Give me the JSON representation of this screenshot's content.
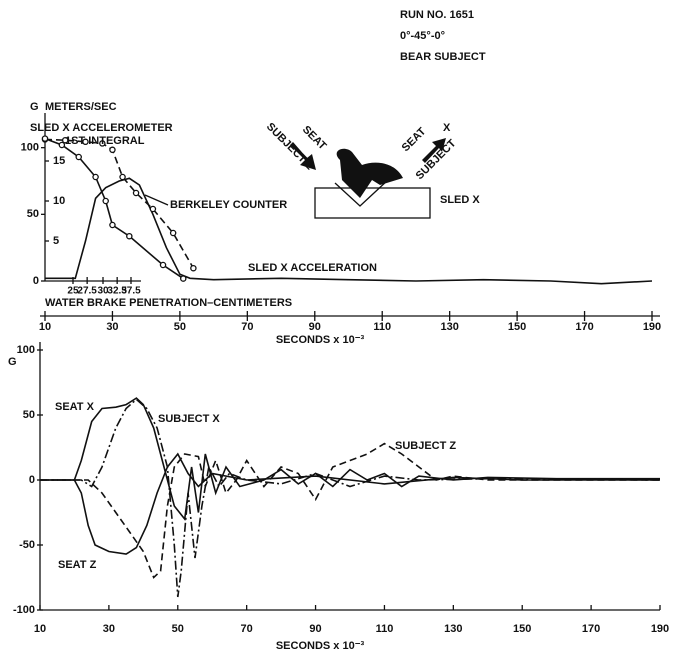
{
  "header": {
    "lines": [
      "RUN NO. 1651",
      "0°-45°-0°",
      "BEAR SUBJECT"
    ]
  },
  "diagram": {
    "labels": [
      "SEAT",
      "SUBJECT Z",
      "SEAT",
      "X",
      "SUBJECT",
      "SLED X"
    ]
  },
  "chart_data": [
    {
      "type": "line",
      "y_label": "G",
      "y2_label": "METERS/SEC",
      "x_label": "SECONDS x 10⁻³",
      "penetration_label": "WATER BRAKE PENETRATION–CENTIMETERS",
      "annotations": [
        "SLED X ACCELEROMETER"
      ],
      "xlim": [
        10,
        190
      ],
      "xticks": [
        10,
        30,
        50,
        70,
        90,
        110,
        130,
        150,
        170,
        190
      ],
      "ylim": [
        0,
        120
      ],
      "yticks": [
        0,
        50,
        100
      ],
      "y2lim": [
        0,
        20
      ],
      "y2ticks": [
        5,
        10,
        15
      ],
      "penetration_ticks": [
        {
          "value": 18.3,
          "label": "25"
        },
        {
          "value": 22.5,
          "label": "27.5"
        },
        {
          "value": 27.2,
          "label": "30"
        },
        {
          "value": 31.4,
          "label": "32.5"
        },
        {
          "value": 35.5,
          "label": "37.5"
        }
      ],
      "series": [
        {
          "name": "SLED X ACCELERATION",
          "color": "#111",
          "dash": "solid",
          "x": [
            10,
            19,
            22,
            25,
            28,
            32,
            35,
            38,
            42,
            46,
            50,
            53,
            60,
            80,
            100,
            120,
            140,
            160,
            175,
            190
          ],
          "values": [
            2,
            2,
            30,
            62,
            70,
            75,
            77,
            72,
            50,
            25,
            5,
            2,
            1,
            2,
            1,
            0,
            1,
            0,
            -2,
            0
          ]
        },
        {
          "name": "1ST INTEGRAL",
          "color": "#111",
          "dash": "dashed",
          "axis": "y2",
          "markers": true,
          "x": [
            10,
            16,
            22,
            27,
            30,
            33,
            37,
            42,
            48,
            54
          ],
          "values": [
            17.7,
            17.6,
            17.4,
            17.2,
            16.4,
            13,
            11,
            9,
            6,
            1.6
          ]
        },
        {
          "name": "BERKELEY COUNTER",
          "color": "#111",
          "dash": "solid",
          "axis": "y2",
          "markers": true,
          "x": [
            10,
            15,
            20,
            25,
            28,
            30,
            35,
            45,
            51
          ],
          "values": [
            17.8,
            17,
            15.5,
            13,
            10,
            7,
            5.6,
            2,
            0.3
          ]
        }
      ]
    },
    {
      "type": "line",
      "y_label": "G",
      "x_label": "SECONDS x 10⁻³",
      "xlim": [
        10,
        190
      ],
      "xticks": [
        10,
        30,
        50,
        70,
        90,
        110,
        130,
        150,
        170,
        190
      ],
      "ylim": [
        -100,
        100
      ],
      "yticks": [
        100,
        50,
        0,
        -50,
        -100
      ],
      "series": [
        {
          "name": "SEAT X",
          "color": "#111",
          "dash": "solid",
          "x": [
            10,
            20,
            22,
            25,
            28,
            32,
            35,
            38,
            40,
            43,
            46,
            49,
            52,
            54,
            56,
            58,
            61,
            64,
            68,
            75,
            80,
            85,
            90,
            95,
            100,
            105,
            110,
            115,
            120,
            130,
            140,
            160,
            190
          ],
          "values": [
            0,
            0,
            15,
            45,
            55,
            56,
            58,
            63,
            58,
            40,
            10,
            -20,
            -30,
            10,
            -25,
            20,
            -10,
            10,
            -5,
            0,
            8,
            -3,
            5,
            -5,
            8,
            0,
            5,
            -5,
            3,
            0,
            2,
            1,
            1
          ]
        },
        {
          "name": "SUBJECT X",
          "color": "#111",
          "dash": "dashdot",
          "x": [
            10,
            22,
            25,
            28,
            32,
            35,
            38,
            41,
            44,
            47,
            49,
            50,
            51,
            53,
            55,
            57,
            59,
            62,
            65,
            70,
            80,
            90,
            100,
            110,
            120,
            140,
            190
          ],
          "values": [
            0,
            0,
            -5,
            10,
            40,
            55,
            62,
            55,
            40,
            10,
            -50,
            -90,
            -70,
            -10,
            -60,
            -20,
            10,
            -5,
            5,
            0,
            -3,
            5,
            -5,
            3,
            0,
            1,
            0
          ]
        },
        {
          "name": "SUBJECT Z",
          "color": "#111",
          "dash": "dashed",
          "x": [
            10,
            24,
            28,
            32,
            36,
            40,
            43,
            45,
            47,
            49,
            52,
            56,
            58,
            61,
            64,
            67,
            70,
            75,
            80,
            85,
            90,
            95,
            100,
            105,
            110,
            115,
            120,
            125,
            130,
            140,
            190
          ],
          "values": [
            0,
            0,
            -10,
            -25,
            -40,
            -55,
            -75,
            -70,
            -20,
            10,
            20,
            18,
            -5,
            15,
            -10,
            0,
            15,
            -5,
            10,
            5,
            -15,
            10,
            15,
            20,
            28,
            20,
            10,
            0,
            3,
            0,
            0
          ]
        },
        {
          "name": "SEAT Z",
          "color": "#111",
          "dash": "solid",
          "x": [
            10,
            20,
            22,
            24,
            26,
            30,
            35,
            38,
            41,
            44,
            47,
            50,
            53,
            56,
            60,
            70,
            90,
            110,
            130,
            150,
            190
          ],
          "values": [
            0,
            0,
            -10,
            -35,
            -50,
            -55,
            -57,
            -52,
            -35,
            -10,
            10,
            20,
            5,
            -5,
            5,
            0,
            3,
            -3,
            2,
            0,
            0
          ]
        }
      ]
    }
  ]
}
